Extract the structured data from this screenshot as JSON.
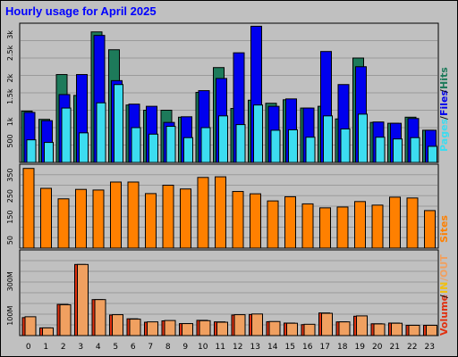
{
  "chart_data": [
    {
      "type": "bar",
      "title": "Hourly usage for April 2025",
      "categories": [
        "0",
        "1",
        "2",
        "3",
        "4",
        "5",
        "6",
        "7",
        "8",
        "9",
        "10",
        "11",
        "12",
        "13",
        "14",
        "15",
        "16",
        "17",
        "18",
        "19",
        "20",
        "21",
        "22",
        "23"
      ],
      "ylim": [
        0,
        3200
      ],
      "yticks": [
        "500",
        "1k",
        "1.5k",
        "2k",
        "2.5k",
        "3k"
      ],
      "legend": [
        "Pages",
        "Files",
        "Hits"
      ],
      "colors": {
        "Hits": "#1d7a5a",
        "Files": "#0000ee",
        "Pages": "#3cdcf0"
      },
      "series": [
        {
          "name": "Hits",
          "values": [
            1180,
            990,
            2020,
            1540,
            3000,
            2590,
            1320,
            1200,
            1200,
            1040,
            1610,
            2180,
            1240,
            1430,
            1360,
            1440,
            1250,
            1290,
            1000,
            2400,
            920,
            900,
            1040,
            740
          ]
        },
        {
          "name": "Files",
          "values": [
            1150,
            960,
            1560,
            2020,
            2920,
            1880,
            1340,
            1290,
            920,
            1050,
            1650,
            1930,
            2520,
            3130,
            1290,
            1460,
            1250,
            2550,
            1790,
            2200,
            930,
            900,
            1010,
            740
          ]
        },
        {
          "name": "Pages",
          "values": [
            520,
            460,
            1250,
            680,
            1370,
            1790,
            800,
            650,
            830,
            570,
            800,
            1070,
            870,
            1320,
            740,
            750,
            580,
            1070,
            770,
            1110,
            580,
            540,
            570,
            370
          ]
        }
      ]
    },
    {
      "type": "bar",
      "ylim": [
        0,
        400
      ],
      "yticks": [
        "50",
        "150",
        "250",
        "350"
      ],
      "legend": [
        "Sites"
      ],
      "colors": {
        "Sites": "#ff8000"
      },
      "series": [
        {
          "name": "Sites",
          "values": [
            380,
            285,
            235,
            280,
            277,
            315,
            315,
            260,
            300,
            282,
            337,
            340,
            270,
            259,
            225,
            245,
            211,
            192,
            196,
            222,
            205,
            243,
            239,
            179
          ]
        }
      ]
    },
    {
      "type": "bar",
      "yticks": [
        "100M",
        "300M"
      ],
      "ylim": [
        0,
        500
      ],
      "legend": [
        "Volume",
        "IN",
        "/OUT"
      ],
      "colors": {
        "Volume": "#e03010",
        "IN": "#f0c010",
        "OUT": "#f0a060"
      },
      "series": [
        {
          "name": "Volume",
          "values": [
            105,
            45,
            182,
            415,
            210,
            120,
            98,
            78,
            86,
            70,
            89,
            80,
            120,
            123,
            81,
            73,
            64,
            132,
            80,
            113,
            69,
            73,
            60,
            60
          ]
        },
        {
          "name": "OUT",
          "values": [
            110,
            45,
            180,
            415,
            210,
            122,
            96,
            80,
            88,
            70,
            87,
            78,
            122,
            126,
            82,
            72,
            66,
            130,
            80,
            115,
            68,
            72,
            60,
            60
          ]
        }
      ]
    }
  ],
  "legend_sep": "/"
}
